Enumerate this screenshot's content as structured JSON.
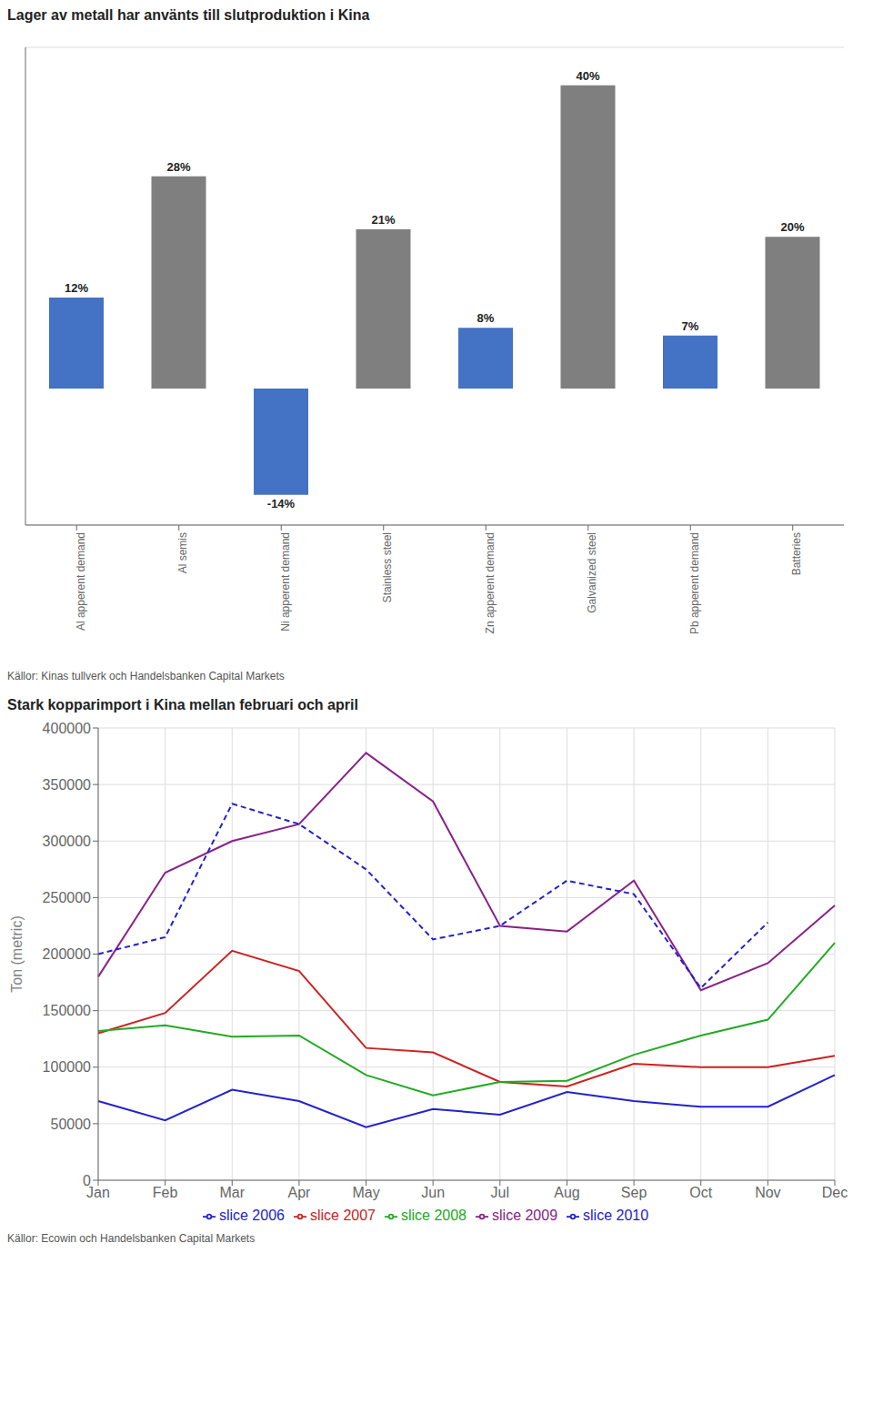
{
  "chart_data": [
    {
      "type": "bar",
      "title": "Lager av metall har använts till slutproduktion i Kina",
      "categories": [
        "Al apperent demand",
        "Al semis",
        "Ni apperent demand",
        "Stainless steel",
        "Zn apperent demand",
        "Galvanized steel",
        "Pb apperent demand",
        "Batteries"
      ],
      "values": [
        12,
        28,
        -14,
        21,
        8,
        40,
        7,
        20
      ],
      "value_labels": [
        "12%",
        "28%",
        "-14%",
        "21%",
        "8%",
        "40%",
        "7%",
        "20%"
      ],
      "colors": [
        "#4472C4",
        "#7F7F7F",
        "#4472C4",
        "#7F7F7F",
        "#4472C4",
        "#7F7F7F",
        "#4472C4",
        "#7F7F7F"
      ],
      "ylim": [
        -18,
        45
      ],
      "yticks": [
        -10,
        0,
        10,
        20,
        30,
        40
      ],
      "grid": true,
      "data_labels": true,
      "tick_labels": "x",
      "annotations": [
        "Källor: Kinas tullverk och Handelsbanken Capital Markets"
      ]
    },
    {
      "type": "line",
      "title": "Stark kopparimport i Kina mellan februari och april",
      "ylabel": "Ton (metric)",
      "categories": [
        "Jan",
        "Feb",
        "Mar",
        "Apr",
        "May",
        "Jun",
        "Jul",
        "Aug",
        "Sep",
        "Oct",
        "Nov",
        "Dec"
      ],
      "series": [
        {
          "name": "slice 2006",
          "color": "#2222CC",
          "line_style": "solid",
          "values": [
            70000,
            53000,
            80000,
            70000,
            47000,
            63000,
            58000,
            78000,
            70000,
            65000,
            65000,
            93000
          ]
        },
        {
          "name": "slice 2007",
          "color": "#CC2222",
          "line_style": "solid",
          "values": [
            130000,
            148000,
            203000,
            185000,
            117000,
            113000,
            87000,
            83000,
            103000,
            100000,
            100000,
            110000
          ]
        },
        {
          "name": "slice 2008",
          "color": "#22AA22",
          "line_style": "solid",
          "values": [
            132000,
            137000,
            127000,
            128000,
            93000,
            75000,
            87000,
            88000,
            111000,
            128000,
            142000,
            210000
          ]
        },
        {
          "name": "slice 2009",
          "color": "#882288",
          "line_style": "solid",
          "values": [
            180000,
            272000,
            300000,
            315000,
            378000,
            335000,
            225000,
            220000,
            265000,
            168000,
            192000,
            243000
          ]
        },
        {
          "name": "slice 2010",
          "color": "#2222CC",
          "line_style": "dashed",
          "values": [
            200000,
            215000,
            333000,
            315000,
            275000,
            213000,
            225000,
            265000,
            253000,
            170000,
            228000,
            null
          ]
        }
      ],
      "ylim": [
        0,
        400000
      ],
      "yticks": [
        0,
        50000,
        100000,
        150000,
        200000,
        250000,
        300000,
        350000,
        400000
      ],
      "grid": true,
      "legend": "bottom",
      "annotations": [
        "Källor: Ecowin och Handelsbanken Capital Markets"
      ]
    }
  ]
}
